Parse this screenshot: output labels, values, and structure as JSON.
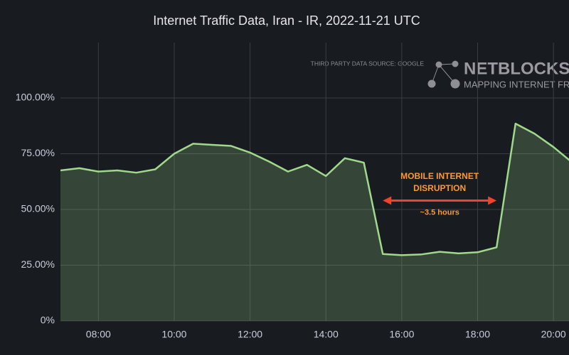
{
  "chart_data": {
    "type": "area",
    "title": "Internet Traffic Data, Iran - IR, 2022-11-21 UTC",
    "source_note": "THIRD PARTY DATA SOURCE: GOOGLE",
    "brand": "NETBLOCKS™.ORG",
    "brand_tagline": "MAPPING INTERNET FREEDOM",
    "annotation": {
      "lines": [
        "MOBILE INTERNET",
        "DISRUPTION"
      ],
      "duration": "~3.5 hours",
      "x_start": 15.5,
      "x_end": 18.5,
      "y": 54,
      "color": "#f0432a",
      "text_color": "#ff9830"
    },
    "x": [
      7,
      7.5,
      8,
      8.5,
      9,
      9.5,
      10,
      10.5,
      11,
      11.5,
      12,
      12.5,
      13,
      13.5,
      14,
      14.5,
      15,
      15.5,
      16,
      16.5,
      17,
      17.5,
      18,
      18.5,
      19,
      19.5,
      20,
      20.5
    ],
    "series": [
      {
        "name": "Traffic",
        "color": "#a0d98c",
        "values": [
          67.5,
          68.5,
          67,
          67.5,
          66.5,
          68,
          75,
          79.5,
          79,
          78.5,
          75.5,
          71.5,
          67,
          70,
          65,
          73,
          71,
          30,
          29.5,
          29.8,
          31,
          30.3,
          30.8,
          33,
          88.5,
          84,
          78,
          71
        ]
      }
    ],
    "xlim": [
      7,
      20.41
    ],
    "xticks": [
      {
        "value": 8,
        "label": "08:00"
      },
      {
        "value": 10,
        "label": "10:00"
      },
      {
        "value": 12,
        "label": "12:00"
      },
      {
        "value": 14,
        "label": "14:00"
      },
      {
        "value": 16,
        "label": "16:00"
      },
      {
        "value": 18,
        "label": "18:00"
      },
      {
        "value": 20,
        "label": "20:00"
      }
    ],
    "ylim": [
      0,
      100
    ],
    "yticks": [
      {
        "value": 0,
        "label": "0%"
      },
      {
        "value": 25,
        "label": "25.00%"
      },
      {
        "value": 50,
        "label": "50.00%"
      },
      {
        "value": 75,
        "label": "75.00%"
      },
      {
        "value": 100,
        "label": "100.00%"
      }
    ],
    "grid": true
  }
}
